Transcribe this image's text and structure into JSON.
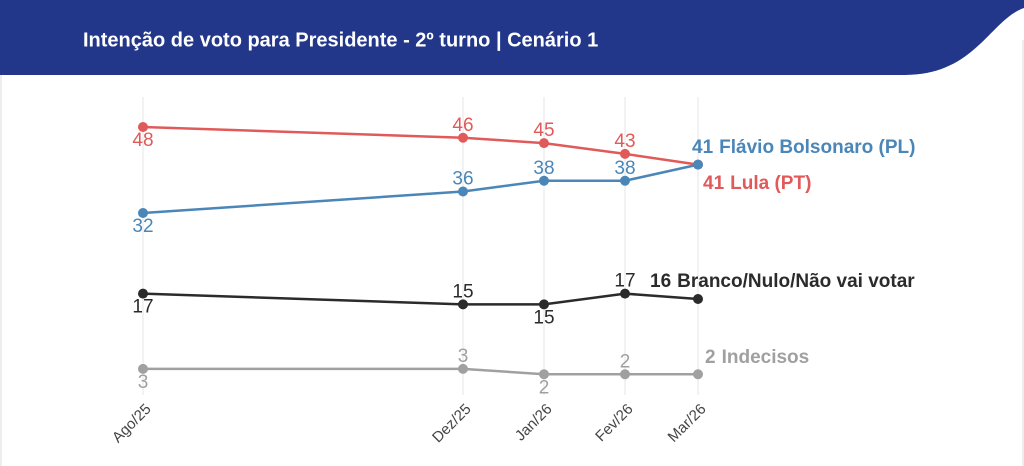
{
  "chart_data": {
    "type": "line",
    "title": "Intenção de voto para Presidente - 2º turno | Cenário 1",
    "categories": [
      "Ago/25",
      "Dez/25",
      "Jan/26",
      "Fev/26",
      "Mar/26"
    ],
    "series": [
      {
        "name": "Lula (PT)",
        "color": "#e05a5a",
        "values": [
          48,
          46,
          45,
          43,
          41
        ]
      },
      {
        "name": "Flávio Bolsonaro (PL)",
        "color": "#4a86b8",
        "values": [
          32,
          36,
          38,
          38,
          41
        ]
      },
      {
        "name": "Branco/Nulo/Não vai votar",
        "color": "#2b2b2b",
        "values": [
          17,
          15,
          15,
          17,
          16
        ]
      },
      {
        "name": "Indecisos",
        "color": "#a0a0a0",
        "values": [
          3,
          3,
          2,
          2,
          2
        ]
      }
    ],
    "grid": true
  }
}
